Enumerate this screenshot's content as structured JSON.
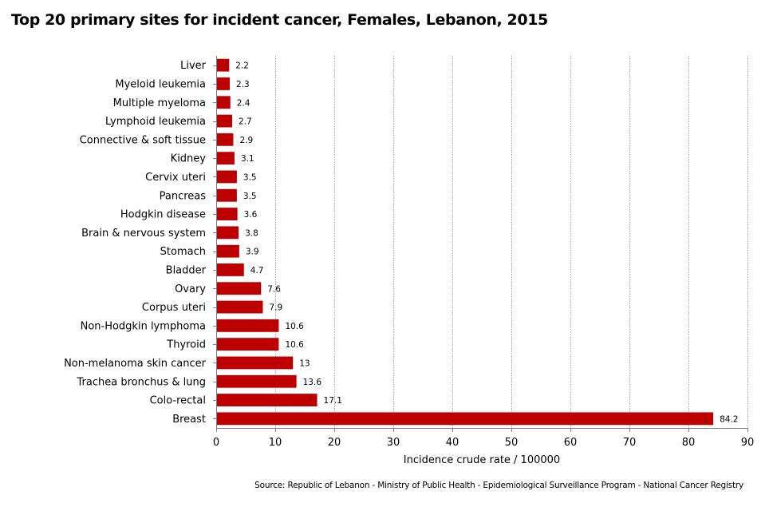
{
  "chart_data": {
    "type": "bar",
    "orientation": "horizontal",
    "title": "Top 20 primary sites for incident cancer, Females, Lebanon, 2015",
    "xlabel": "Incidence crude rate / 100000",
    "ylabel": "",
    "xlim": [
      0,
      90
    ],
    "xticks": [
      0,
      10,
      20,
      30,
      40,
      50,
      60,
      70,
      80,
      90
    ],
    "grid": "vertical",
    "legend": "none",
    "bar_color": "#c00000",
    "categories": [
      "Liver",
      "Myeloid leukemia",
      "Multiple myeloma",
      "Lymphoid leukemia",
      "Connective & soft tissue",
      "Kidney",
      "Cervix uteri",
      "Pancreas",
      "Hodgkin disease",
      "Brain & nervous system",
      "Stomach",
      "Bladder",
      "Ovary",
      "Corpus uteri",
      "Non-Hodgkin lymphoma",
      "Thyroid",
      "Non-melanoma skin cancer",
      "Trachea bronchus & lung",
      "Colo-rectal",
      "Breast"
    ],
    "values": [
      2.2,
      2.3,
      2.4,
      2.7,
      2.9,
      3.1,
      3.5,
      3.5,
      3.6,
      3.8,
      3.9,
      4.7,
      7.6,
      7.9,
      10.6,
      10.6,
      13,
      13.6,
      17.1,
      84.2
    ],
    "value_labels": [
      "2.2",
      "2.3",
      "2.4",
      "2.7",
      "2.9",
      "3.1",
      "3.5",
      "3.5",
      "3.6",
      "3.8",
      "3.9",
      "4.7",
      "7.6",
      "7.9",
      "10.6",
      "10.6",
      "13",
      "13.6",
      "17.1",
      "84.2"
    ]
  },
  "source": "Source:  Republic of Lebanon  - Ministry of Public Health - Epidemiological Surveillance Program - National Cancer Registry"
}
